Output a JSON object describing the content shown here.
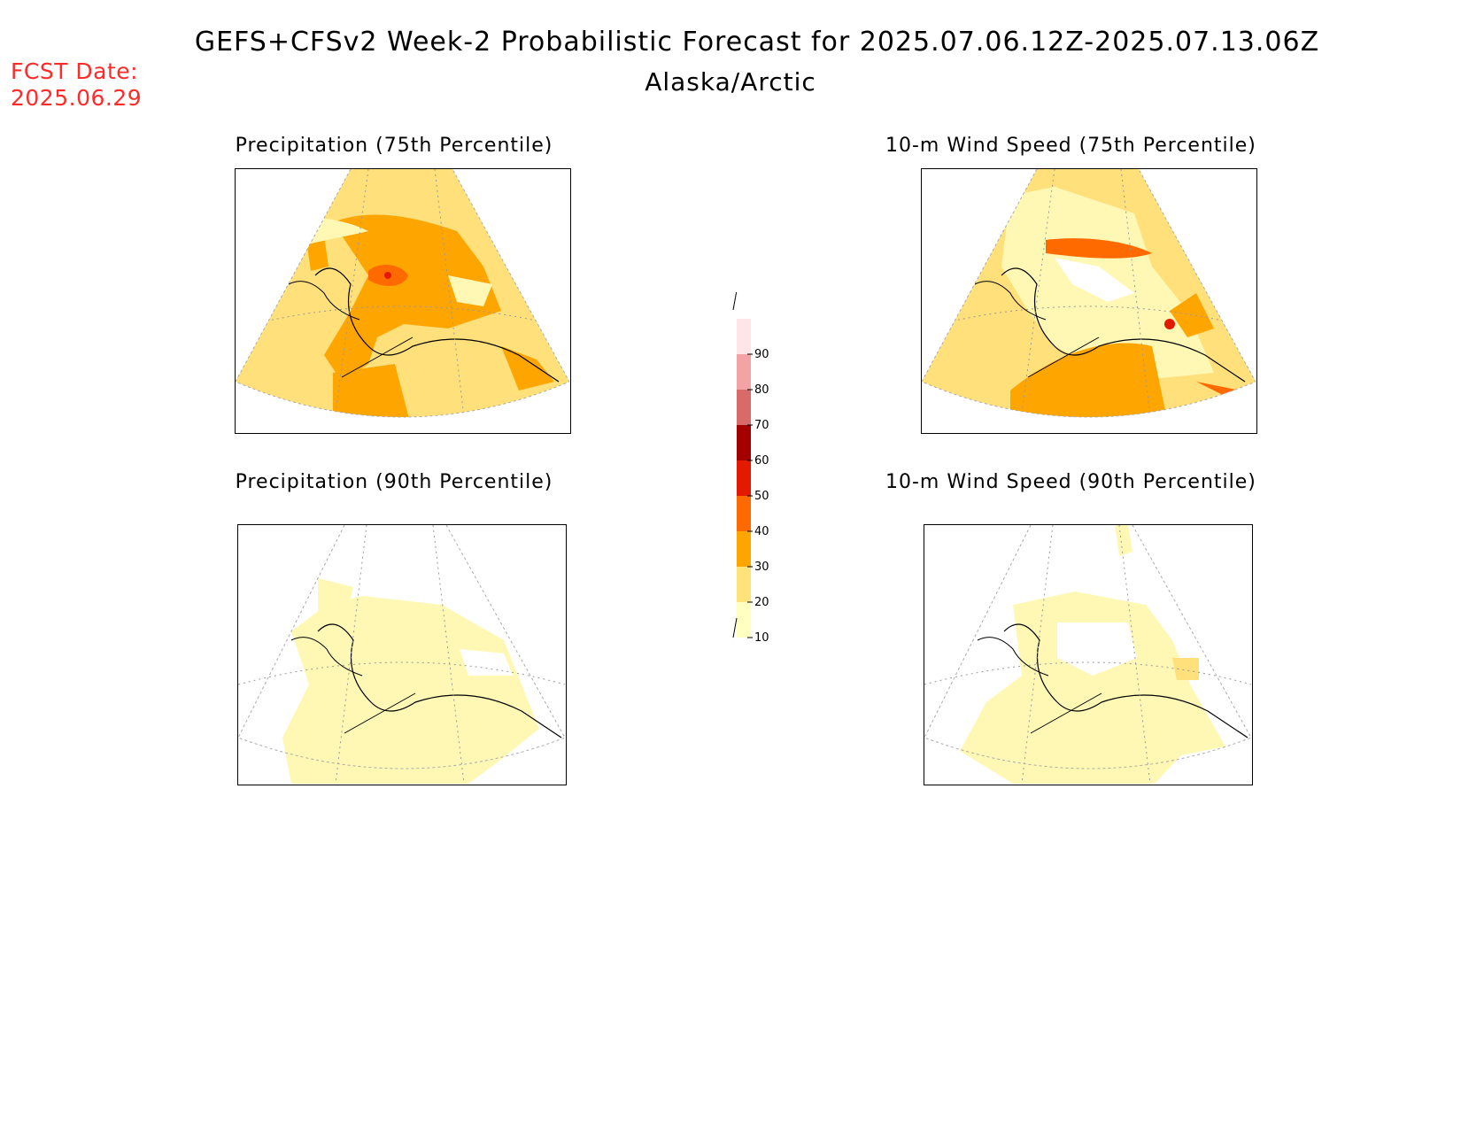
{
  "header": {
    "title": "GEFS+CFSv2 Week-2 Probabilistic Forecast for 2025.07.06.12Z-2025.07.13.06Z",
    "subtitle": "Alaska/Arctic",
    "fcst_label": "FCST Date:",
    "fcst_date": "2025.06.29"
  },
  "panels": [
    {
      "id": "precip75",
      "title": "Precipitation (75th Percentile)",
      "dominant_level": 20
    },
    {
      "id": "wind75",
      "title": "10-m Wind Speed (75th Percentile)",
      "dominant_level": 20
    },
    {
      "id": "precip90",
      "title": "Precipitation (90th Percentile)",
      "dominant_level": 10
    },
    {
      "id": "wind90",
      "title": "10-m Wind Speed (90th Percentile)",
      "dominant_level": 10
    }
  ],
  "colorbar": {
    "levels": [
      "10",
      "20",
      "30",
      "40",
      "50",
      "60",
      "70",
      "80",
      "90"
    ],
    "colors": [
      "#ffffc0",
      "#ffe37a",
      "#ffa500",
      "#ff6a00",
      "#e31a00",
      "#a50000",
      "#d96a6a",
      "#f4a3a3",
      "#ffe5e5"
    ]
  },
  "colors": {
    "c10": "#fff8b4",
    "c20": "#ffe07a",
    "c30": "#ffa500",
    "c40": "#ff6a00",
    "c50": "#e31a00",
    "fcst_text": "#ff2a2a"
  }
}
